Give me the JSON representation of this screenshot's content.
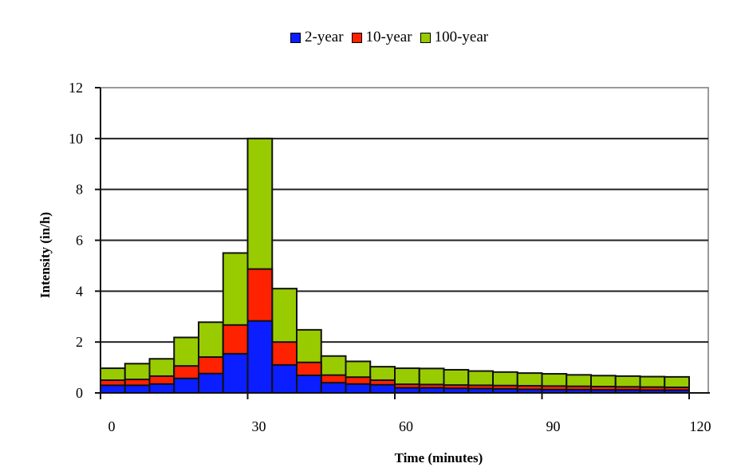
{
  "chart_data": {
    "type": "bar",
    "stacking": "overlapped",
    "title": "",
    "xlabel": "Time (minutes)",
    "ylabel": "Intensity (in/h)",
    "ylim": [
      0,
      12
    ],
    "xlim": [
      0,
      120
    ],
    "yticks": [
      0,
      2,
      4,
      6,
      8,
      10,
      12
    ],
    "xticks": [
      0,
      30,
      60,
      90,
      120
    ],
    "grid": {
      "horizontal": true,
      "vertical": false
    },
    "legend_position": "top",
    "bin_width_minutes": 5,
    "categories": [
      "0-5",
      "5-10",
      "10-15",
      "15-20",
      "20-25",
      "25-30",
      "30-35",
      "35-40",
      "40-45",
      "45-50",
      "50-55",
      "55-60",
      "60-65",
      "65-70",
      "70-75",
      "75-80",
      "80-85",
      "85-90",
      "90-95",
      "95-100",
      "100-105",
      "105-110",
      "110-115",
      "115-120"
    ],
    "series": [
      {
        "name": "100-year",
        "color": "#99CC00",
        "values": [
          0.97,
          1.15,
          1.34,
          2.18,
          2.78,
          5.5,
          10.0,
          4.1,
          2.48,
          1.45,
          1.24,
          1.03,
          0.97,
          0.96,
          0.91,
          0.86,
          0.82,
          0.78,
          0.75,
          0.71,
          0.68,
          0.66,
          0.64,
          0.63
        ]
      },
      {
        "name": "10-year",
        "color": "#FF2200",
        "values": [
          0.5,
          0.53,
          0.66,
          1.06,
          1.41,
          2.67,
          4.87,
          2.0,
          1.2,
          0.7,
          0.62,
          0.5,
          0.34,
          0.33,
          0.31,
          0.3,
          0.29,
          0.28,
          0.27,
          0.26,
          0.25,
          0.24,
          0.23,
          0.22
        ]
      },
      {
        "name": "2-year",
        "color": "#0A1EFF",
        "values": [
          0.3,
          0.3,
          0.35,
          0.57,
          0.76,
          1.54,
          2.83,
          1.1,
          0.69,
          0.4,
          0.35,
          0.32,
          0.2,
          0.2,
          0.18,
          0.17,
          0.16,
          0.14,
          0.13,
          0.13,
          0.12,
          0.12,
          0.11,
          0.11
        ]
      }
    ]
  },
  "legend": {
    "items": [
      {
        "label": "2-year",
        "color": "#0A1EFF"
      },
      {
        "label": "10-year",
        "color": "#FF2200"
      },
      {
        "label": "100-year",
        "color": "#99CC00"
      }
    ]
  },
  "axes": {
    "x_title": "Time (minutes)",
    "y_title": "Intensity (in/h)",
    "x_tick_labels": [
      "0",
      "30",
      "60",
      "90",
      "120"
    ],
    "y_tick_labels": [
      "0",
      "2",
      "4",
      "6",
      "8",
      "10",
      "12"
    ]
  }
}
